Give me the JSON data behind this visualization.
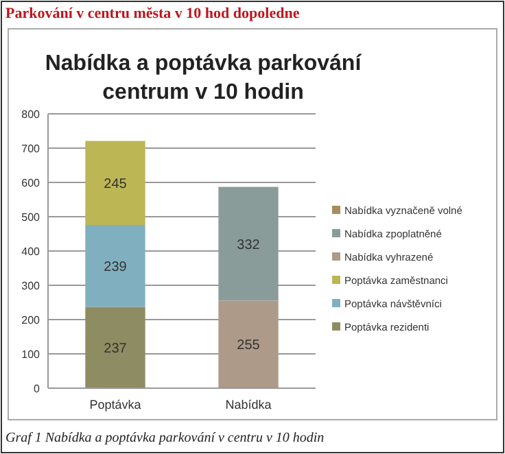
{
  "chart_data": {
    "type": "bar",
    "title": "Nabídka a poptávka parkování centrum v 10 hodin",
    "annotations": [
      "Parkování v centru města v 10 hod dopoledne",
      "Graf 1 Nabídka a poptávka parkování v centru v 10 hodin"
    ],
    "categories": [
      "Poptávka",
      "Nabídka"
    ],
    "series": [
      {
        "name": "Poptávka rezidenti",
        "color": "#8e8c62",
        "values": [
          237,
          null
        ]
      },
      {
        "name": "Poptávka návštěvníci",
        "color": "#80b0bf",
        "values": [
          239,
          null
        ]
      },
      {
        "name": "Poptávka zaměstnanci",
        "color": "#bdb654",
        "values": [
          245,
          null
        ]
      },
      {
        "name": "Nabídka vyhrazené",
        "color": "#ad9a88",
        "values": [
          null,
          255
        ]
      },
      {
        "name": "Nabídka zpoplatněné",
        "color": "#8a9c9a",
        "values": [
          null,
          332
        ]
      },
      {
        "name": "Nabídka vyznačeně volné",
        "color": "#a88c5c",
        "values": [
          null,
          null
        ]
      }
    ],
    "stacked": true,
    "ylim": [
      0,
      800
    ],
    "yticks": [
      0,
      100,
      200,
      300,
      400,
      500,
      600,
      700,
      800
    ],
    "grid": "y",
    "legend": "right",
    "data_labels": true
  }
}
